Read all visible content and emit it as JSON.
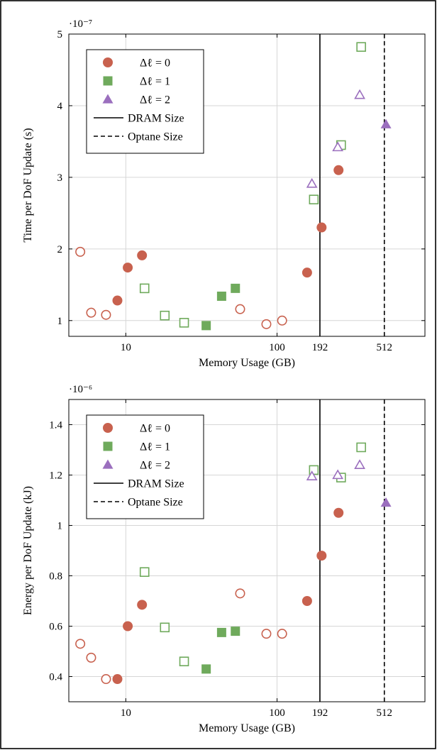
{
  "colors": {
    "dl0": "#c8614e",
    "dl1": "#6faa5c",
    "dl2": "#9b6fbe",
    "vline": "#000000",
    "grid": "#d6d6d6"
  },
  "legend": {
    "entries": [
      {
        "label": "Δℓ = 0",
        "marker": "circle",
        "color_key": "dl0"
      },
      {
        "label": "Δℓ = 1",
        "marker": "square",
        "color_key": "dl1"
      },
      {
        "label": "Δℓ = 2",
        "marker": "triangle",
        "color_key": "dl2"
      },
      {
        "label": "DRAM Size",
        "marker": "solid-line",
        "color_key": "vline"
      },
      {
        "label": "Optane Size",
        "marker": "dashed-line",
        "color_key": "vline"
      }
    ],
    "placement": "top-left"
  },
  "chart_data": [
    {
      "type": "scatter",
      "title": "",
      "xlabel": "Memory Usage (GB)",
      "ylabel": "Time per DoF Update (s)",
      "x_scale": "log",
      "xlim": [
        4.2,
        950
      ],
      "ylim": [
        0.78,
        5.0
      ],
      "y_multiplier": "·10⁻⁷",
      "xticks": [
        {
          "value": 10,
          "label": "10"
        },
        {
          "value": 100,
          "label": "100"
        },
        {
          "value": 192,
          "label": "192"
        },
        {
          "value": 512,
          "label": "512"
        }
      ],
      "yticks": [
        {
          "value": 1,
          "label": "1"
        },
        {
          "value": 2,
          "label": "2"
        },
        {
          "value": 3,
          "label": "3"
        },
        {
          "value": 4,
          "label": "4"
        },
        {
          "value": 5,
          "label": "5"
        }
      ],
      "grid": true,
      "vlines": [
        {
          "x": 192,
          "style": "solid",
          "label": "DRAM Size"
        },
        {
          "x": 512,
          "style": "dashed",
          "label": "Optane Size"
        }
      ],
      "series": [
        {
          "name": "Δℓ = 0",
          "marker": "circle",
          "color_key": "dl0",
          "points": [
            {
              "x": 5.0,
              "y": 1.96,
              "filled": false
            },
            {
              "x": 5.9,
              "y": 1.11,
              "filled": false
            },
            {
              "x": 7.4,
              "y": 1.08,
              "filled": false
            },
            {
              "x": 8.8,
              "y": 1.28,
              "filled": true
            },
            {
              "x": 10.3,
              "y": 1.74,
              "filled": true
            },
            {
              "x": 12.8,
              "y": 1.91,
              "filled": true
            },
            {
              "x": 57,
              "y": 1.16,
              "filled": false
            },
            {
              "x": 85,
              "y": 0.95,
              "filled": false
            },
            {
              "x": 108,
              "y": 1.0,
              "filled": false
            },
            {
              "x": 158,
              "y": 1.67,
              "filled": true
            },
            {
              "x": 197,
              "y": 2.3,
              "filled": true
            },
            {
              "x": 255,
              "y": 3.1,
              "filled": true
            }
          ]
        },
        {
          "name": "Δℓ = 1",
          "marker": "square",
          "color_key": "dl1",
          "points": [
            {
              "x": 13.3,
              "y": 1.45,
              "filled": false
            },
            {
              "x": 18.1,
              "y": 1.07,
              "filled": false
            },
            {
              "x": 24.3,
              "y": 0.97,
              "filled": false
            },
            {
              "x": 34,
              "y": 0.93,
              "filled": true
            },
            {
              "x": 43,
              "y": 1.34,
              "filled": true
            },
            {
              "x": 53,
              "y": 1.45,
              "filled": true
            },
            {
              "x": 175,
              "y": 2.69,
              "filled": false
            },
            {
              "x": 265,
              "y": 3.45,
              "filled": false
            },
            {
              "x": 360,
              "y": 4.82,
              "filled": false
            }
          ]
        },
        {
          "name": "Δℓ = 2",
          "marker": "triangle",
          "color_key": "dl2",
          "points": [
            {
              "x": 170,
              "y": 2.91,
              "filled": false
            },
            {
              "x": 252,
              "y": 3.42,
              "filled": false
            },
            {
              "x": 352,
              "y": 4.15,
              "filled": false
            },
            {
              "x": 525,
              "y": 3.74,
              "filled": true
            }
          ]
        }
      ]
    },
    {
      "type": "scatter",
      "title": "",
      "xlabel": "Memory Usage (GB)",
      "ylabel": "Energy per DoF Update (kJ)",
      "x_scale": "log",
      "xlim": [
        4.2,
        950
      ],
      "ylim": [
        0.3,
        1.5
      ],
      "y_multiplier": "·10⁻⁶",
      "xticks": [
        {
          "value": 10,
          "label": "10"
        },
        {
          "value": 100,
          "label": "100"
        },
        {
          "value": 192,
          "label": "192"
        },
        {
          "value": 512,
          "label": "512"
        }
      ],
      "yticks": [
        {
          "value": 0.4,
          "label": "0.4"
        },
        {
          "value": 0.6,
          "label": "0.6"
        },
        {
          "value": 0.8,
          "label": "0.8"
        },
        {
          "value": 1.0,
          "label": "1"
        },
        {
          "value": 1.2,
          "label": "1.2"
        },
        {
          "value": 1.4,
          "label": "1.4"
        }
      ],
      "grid": true,
      "vlines": [
        {
          "x": 192,
          "style": "solid",
          "label": "DRAM Size"
        },
        {
          "x": 512,
          "style": "dashed",
          "label": "Optane Size"
        }
      ],
      "series": [
        {
          "name": "Δℓ = 0",
          "marker": "circle",
          "color_key": "dl0",
          "points": [
            {
              "x": 5.0,
              "y": 0.53,
              "filled": false
            },
            {
              "x": 5.9,
              "y": 0.475,
              "filled": false
            },
            {
              "x": 7.4,
              "y": 0.39,
              "filled": false
            },
            {
              "x": 8.8,
              "y": 0.39,
              "filled": true
            },
            {
              "x": 10.3,
              "y": 0.6,
              "filled": true
            },
            {
              "x": 12.8,
              "y": 0.685,
              "filled": true
            },
            {
              "x": 57,
              "y": 0.73,
              "filled": false
            },
            {
              "x": 85,
              "y": 0.57,
              "filled": false
            },
            {
              "x": 108,
              "y": 0.57,
              "filled": false
            },
            {
              "x": 158,
              "y": 0.7,
              "filled": true
            },
            {
              "x": 197,
              "y": 0.88,
              "filled": true
            },
            {
              "x": 255,
              "y": 1.05,
              "filled": true
            }
          ]
        },
        {
          "name": "Δℓ = 1",
          "marker": "square",
          "color_key": "dl1",
          "points": [
            {
              "x": 13.3,
              "y": 0.815,
              "filled": false
            },
            {
              "x": 18.1,
              "y": 0.595,
              "filled": false
            },
            {
              "x": 24.3,
              "y": 0.46,
              "filled": false
            },
            {
              "x": 34,
              "y": 0.43,
              "filled": true
            },
            {
              "x": 43,
              "y": 0.575,
              "filled": true
            },
            {
              "x": 53,
              "y": 0.58,
              "filled": true
            },
            {
              "x": 175,
              "y": 1.22,
              "filled": false
            },
            {
              "x": 265,
              "y": 1.19,
              "filled": false
            },
            {
              "x": 360,
              "y": 1.31,
              "filled": false
            }
          ]
        },
        {
          "name": "Δℓ = 2",
          "marker": "triangle",
          "color_key": "dl2",
          "points": [
            {
              "x": 170,
              "y": 1.195,
              "filled": false
            },
            {
              "x": 252,
              "y": 1.2,
              "filled": false
            },
            {
              "x": 352,
              "y": 1.24,
              "filled": false
            },
            {
              "x": 525,
              "y": 1.09,
              "filled": true
            }
          ]
        }
      ]
    }
  ]
}
